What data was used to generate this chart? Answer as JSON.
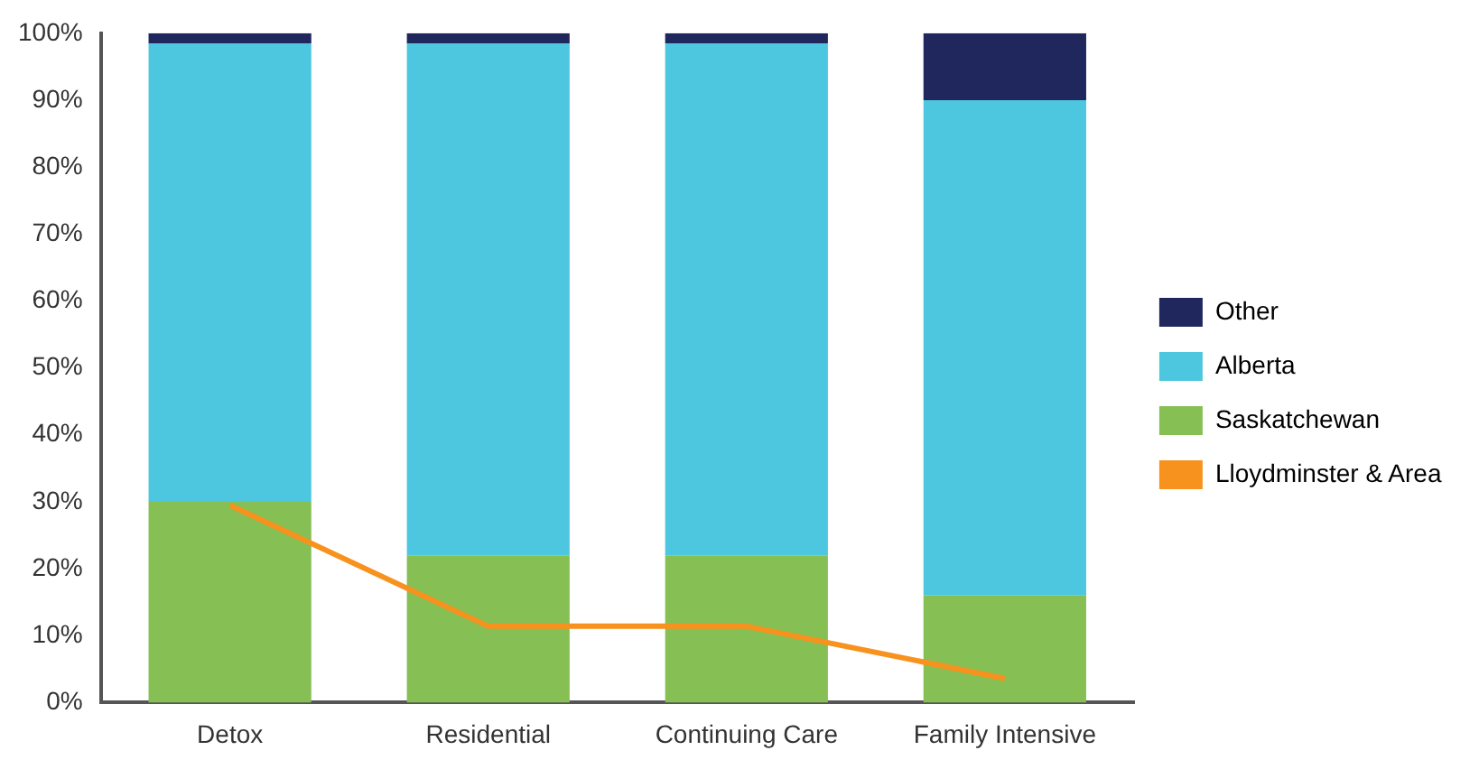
{
  "chart_data": {
    "type": "bar",
    "stacked": true,
    "categories": [
      "Detox",
      "Residential",
      "Continuing Care",
      "Family Intensive"
    ],
    "series": [
      {
        "name": "Saskatchewan",
        "color": "#86bf53",
        "values": [
          30,
          22,
          22,
          16
        ]
      },
      {
        "name": "Alberta",
        "color": "#4dc6df",
        "values": [
          68.5,
          76.5,
          76.5,
          74
        ]
      },
      {
        "name": "Other",
        "color": "#1f275c",
        "values": [
          1.5,
          1.5,
          1.5,
          10
        ]
      },
      {
        "name": "Lloydminster & Area",
        "type": "line",
        "color": "#f7921e",
        "values": [
          29.5,
          11.4,
          11.4,
          3.6
        ]
      }
    ],
    "ylim": [
      0,
      100
    ],
    "yticks": [
      {
        "value": 0,
        "label": "0%"
      },
      {
        "value": 10,
        "label": "10%"
      },
      {
        "value": 20,
        "label": "20%"
      },
      {
        "value": 30,
        "label": "30%"
      },
      {
        "value": 40,
        "label": "40%"
      },
      {
        "value": 50,
        "label": "50%"
      },
      {
        "value": 60,
        "label": "60%"
      },
      {
        "value": 70,
        "label": "70%"
      },
      {
        "value": 80,
        "label": "80%"
      },
      {
        "value": 90,
        "label": "90%"
      },
      {
        "value": 100,
        "label": "100%"
      }
    ],
    "grid": false,
    "legend": "right",
    "marker": "none"
  }
}
